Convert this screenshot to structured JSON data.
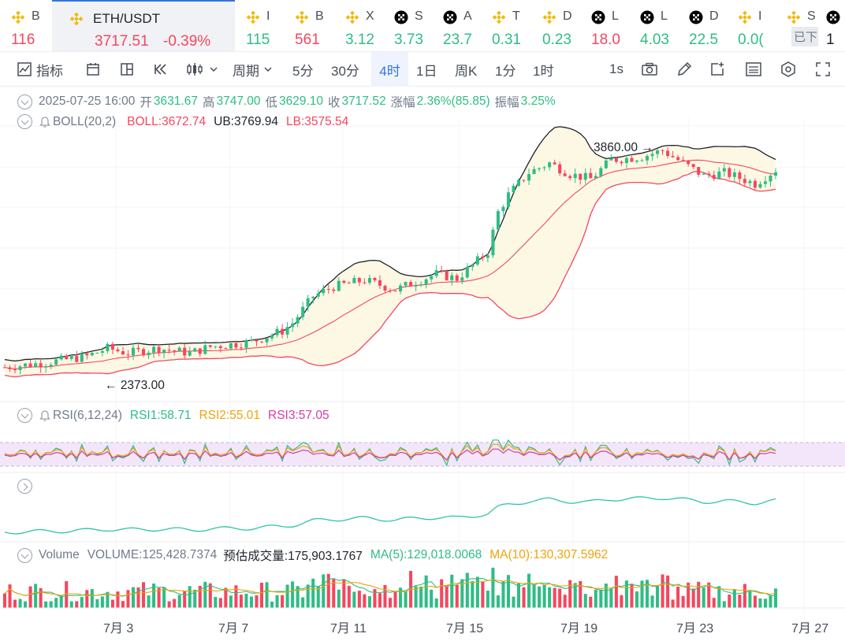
{
  "tickers": [
    {
      "symbol": "B",
      "price": "116",
      "color": "#f6465d",
      "icon": "bnb-icon",
      "active": false
    },
    {
      "symbol": "ETH/USDT",
      "price": "3717.51",
      "change": "-0.39%",
      "color": "#f6465d",
      "icon": "bnb-icon",
      "active": true
    },
    {
      "symbol": "I",
      "price": "115",
      "color": "#2ebd85",
      "icon": "bnb-icon",
      "active": false
    },
    {
      "symbol": "B",
      "price": "561",
      "color": "#f6465d",
      "icon": "bnb-icon",
      "active": false
    },
    {
      "symbol": "X",
      "price": "3.12",
      "color": "#2ebd85",
      "icon": "bnb-icon",
      "active": false
    },
    {
      "symbol": "S",
      "price": "3.73",
      "color": "#2ebd85",
      "icon": "okx-icon",
      "active": false
    },
    {
      "symbol": "A",
      "price": "23.7",
      "color": "#2ebd85",
      "icon": "okx-icon",
      "active": false
    },
    {
      "symbol": "T",
      "price": "0.31",
      "color": "#2ebd85",
      "icon": "bnb-icon",
      "active": false
    },
    {
      "symbol": "D",
      "price": "0.23",
      "color": "#2ebd85",
      "icon": "bnb-icon",
      "active": false
    },
    {
      "symbol": "L",
      "price": "18.0",
      "color": "#f6465d",
      "icon": "okx-icon",
      "active": false
    },
    {
      "symbol": "L",
      "price": "4.03",
      "color": "#2ebd85",
      "icon": "okx-icon",
      "active": false
    },
    {
      "symbol": "D",
      "price": "22.5",
      "color": "#2ebd85",
      "icon": "okx-icon",
      "active": false
    },
    {
      "symbol": "I",
      "price": "0.0(",
      "color": "#2ebd85",
      "icon": "bnb-icon",
      "active": false
    },
    {
      "symbol": "S",
      "price": "",
      "color": "#2ebd85",
      "icon": "bnb-icon",
      "active": false,
      "tag": "已下"
    },
    {
      "symbol": "I",
      "price": "1",
      "color": "#1e2329",
      "icon": "okx-icon",
      "active": false
    }
  ],
  "toolbar": {
    "indicators_label": "指标",
    "period_label": "周期",
    "intervals": [
      "5分",
      "30分",
      "4时",
      "1日",
      "周K",
      "1分",
      "1时"
    ],
    "selected_interval": "4时",
    "speed_label": "1s",
    "icons": [
      "indicator-icon",
      "calendar-icon",
      "layout-icon",
      "replay-icon",
      "candle-type-icon",
      "chevron-down-icon",
      "camera-icon",
      "pen-icon",
      "add-alert-icon",
      "calculator-icon",
      "settings-icon",
      "fullscreen-icon"
    ]
  },
  "ohlc": {
    "datetime": "2025-07-25 16:00",
    "open_label": "开",
    "open": "3631.67",
    "high_label": "高",
    "high": "3747.00",
    "low_label": "低",
    "low": "3629.10",
    "close_label": "收",
    "close": "3717.52",
    "change_label": "涨幅",
    "change": "2.36%(85.85)",
    "amp_label": "振幅",
    "amp": "3.25%"
  },
  "boll": {
    "title": "BOLL(20,2)",
    "mid": "BOLL:3672.74",
    "ub": "UB:3769.94",
    "lb": "LB:3575.54"
  },
  "price_annotations": {
    "high": "3860.00",
    "low": "2373.00"
  },
  "rsi": {
    "title": "RSI(6,12,24)",
    "rsi1": "RSI1:58.71",
    "rsi2": "RSI2:55.01",
    "rsi3": "RSI3:57.05"
  },
  "volume": {
    "title": "Volume",
    "volume": "VOLUME:125,428.7374",
    "est_label": "预估成交量:175,903.1767",
    "ma5": "MA(5):129,018.0068",
    "ma10": "MA(10):130,307.5962"
  },
  "x_axis": [
    "7月 3",
    "7月 7",
    "7月 11",
    "7月 15",
    "7月 19",
    "7月 23",
    "7月 27"
  ],
  "colors": {
    "up": "#2ebd85",
    "down": "#f6465d",
    "accent": "#3375e0",
    "boll_mid": "#f6465d",
    "boll_ub": "#1e2329",
    "boll_lb": "#f6465d",
    "rsi1": "#2ebd85",
    "rsi2": "#f0a30a",
    "rsi3": "#d63ca8",
    "ma5": "#2ebd85",
    "ma10": "#f0a30a"
  },
  "chart_data": {
    "type": "candlestick",
    "interval": "4时",
    "date_range": [
      "2025-06-30",
      "2025-07-25"
    ],
    "close_trend": [
      [
        0,
        2470
      ],
      [
        8,
        2500
      ],
      [
        16,
        2540
      ],
      [
        20,
        2590
      ],
      [
        24,
        2560
      ],
      [
        30,
        2590
      ],
      [
        36,
        2560
      ],
      [
        40,
        2600
      ],
      [
        48,
        2630
      ],
      [
        54,
        2700
      ],
      [
        56,
        2750
      ],
      [
        60,
        2920
      ],
      [
        64,
        2980
      ],
      [
        70,
        3020
      ],
      [
        76,
        2960
      ],
      [
        84,
        3060
      ],
      [
        88,
        3030
      ],
      [
        94,
        3200
      ],
      [
        96,
        3450
      ],
      [
        98,
        3560
      ],
      [
        102,
        3700
      ],
      [
        106,
        3760
      ],
      [
        110,
        3690
      ],
      [
        114,
        3660
      ],
      [
        118,
        3780
      ],
      [
        124,
        3800
      ],
      [
        128,
        3840
      ],
      [
        132,
        3760
      ],
      [
        136,
        3680
      ],
      [
        140,
        3700
      ],
      [
        146,
        3630
      ],
      [
        150,
        3718
      ]
    ],
    "boll_ub_range": [
      2560,
      3870
    ],
    "boll_lb_range": [
      2430,
      3580
    ],
    "y_annotations": {
      "max": 3860,
      "min": 2373
    }
  }
}
